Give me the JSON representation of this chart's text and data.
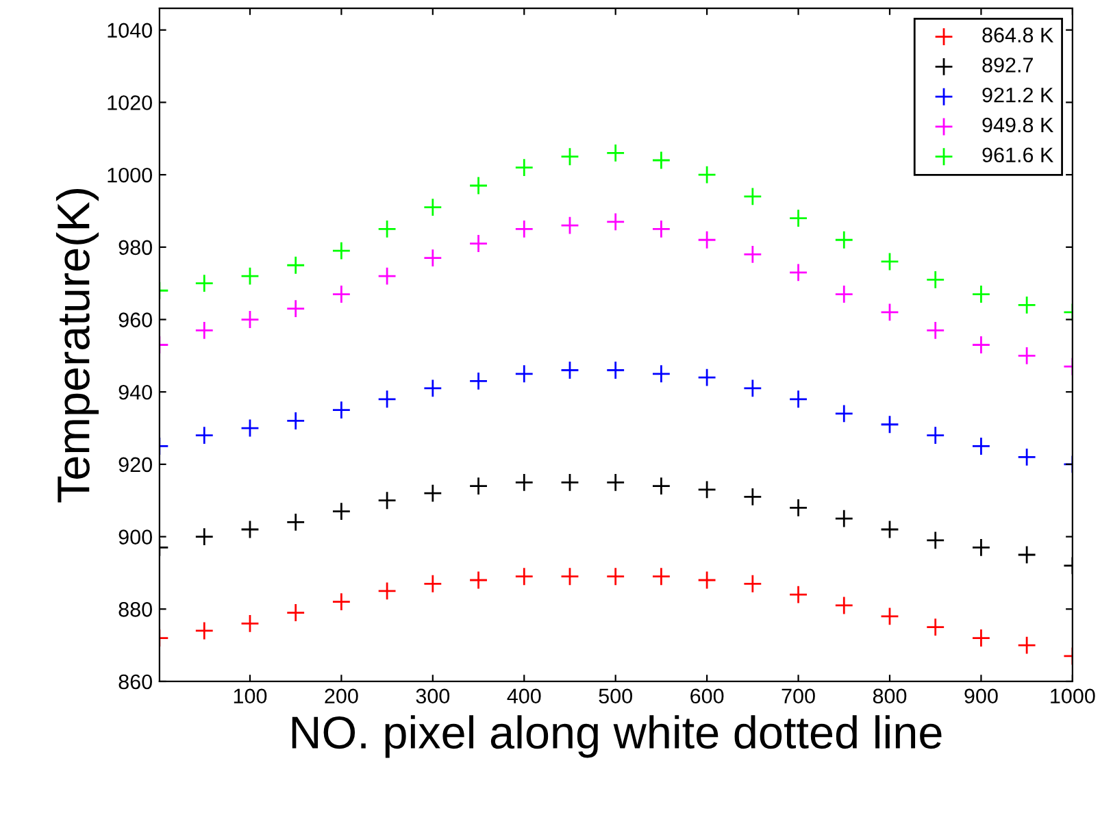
{
  "chart_data": {
    "type": "scatter",
    "xlabel": "NO. pixel along white dotted line",
    "ylabel": "Temperature(K)",
    "x": [
      1,
      50,
      100,
      150,
      200,
      250,
      300,
      350,
      400,
      450,
      500,
      550,
      600,
      650,
      700,
      750,
      800,
      850,
      900,
      950,
      1000
    ],
    "xlim": [
      1,
      1000
    ],
    "xticks": [
      100,
      200,
      300,
      400,
      500,
      600,
      700,
      800,
      900,
      1000
    ],
    "ylim": [
      860,
      1046
    ],
    "yticks": [
      860,
      880,
      900,
      920,
      940,
      960,
      980,
      1000,
      1020,
      1040
    ],
    "marker": "cross",
    "legend": "top right",
    "grid": false,
    "series": [
      {
        "name": "864.8 K",
        "color": "#ff0000",
        "values": [
          872,
          874,
          876,
          879,
          882,
          885,
          887,
          888,
          889,
          889,
          889,
          889,
          888,
          887,
          884,
          881,
          878,
          875,
          872,
          870,
          867
        ]
      },
      {
        "name": "892.7",
        "color": "#000000",
        "values": [
          897,
          900,
          902,
          904,
          907,
          910,
          912,
          914,
          915,
          915,
          915,
          914,
          913,
          911,
          908,
          905,
          902,
          899,
          897,
          895,
          892
        ]
      },
      {
        "name": "921.2 K",
        "color": "#0000ff",
        "values": [
          925,
          928,
          930,
          932,
          935,
          938,
          941,
          943,
          945,
          946,
          946,
          945,
          944,
          941,
          938,
          934,
          931,
          928,
          925,
          922,
          920
        ]
      },
      {
        "name": "949.8 K",
        "color": "#ff00ff",
        "values": [
          953,
          957,
          960,
          963,
          967,
          972,
          977,
          981,
          985,
          986,
          987,
          985,
          982,
          978,
          973,
          967,
          962,
          957,
          953,
          950,
          947
        ]
      },
      {
        "name": "961.6 K",
        "color": "#00ff00",
        "values": [
          968,
          970,
          972,
          975,
          979,
          985,
          991,
          997,
          1002,
          1005,
          1006,
          1004,
          1000,
          994,
          988,
          982,
          976,
          971,
          967,
          964,
          962
        ]
      }
    ]
  }
}
